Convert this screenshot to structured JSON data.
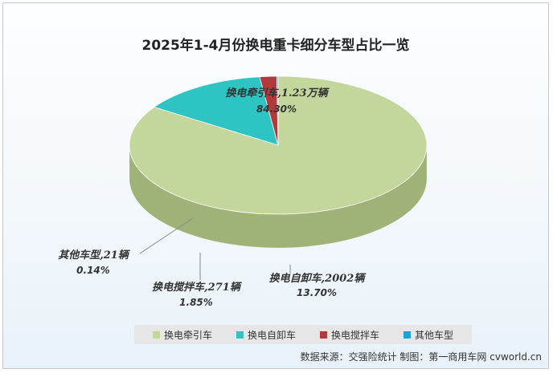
{
  "source_text": "数据来源：交强险统计  制图：第一商用车网 cvworld.cn",
  "chart_data": {
    "type": "pie",
    "style": "3d",
    "title": "2025年1-4月份换电重卡细分车型占比一览",
    "slices": [
      {
        "name": "换电牵引车",
        "label": "换电牵引车,1.23万辆",
        "percent_label": "84.30%",
        "value": 84.3,
        "color": "#c3d69b",
        "side_color": "#9fb277"
      },
      {
        "name": "换电自卸车",
        "label": "换电自卸车,2002辆",
        "percent_label": "13.70%",
        "value": 13.7,
        "color": "#2ec4c4",
        "side_color": "#1f8f8f"
      },
      {
        "name": "换电搅拌车",
        "label": "换电搅拌车,271辆",
        "percent_label": "1.85%",
        "value": 1.85,
        "color": "#b33a3a",
        "side_color": "#7f2424"
      },
      {
        "name": "其他车型",
        "label": "其他车型,21辆",
        "percent_label": "0.14%",
        "value": 0.14,
        "color": "#1aa3d9",
        "side_color": "#12779f"
      }
    ],
    "legend": {
      "placement": "bottom"
    }
  }
}
